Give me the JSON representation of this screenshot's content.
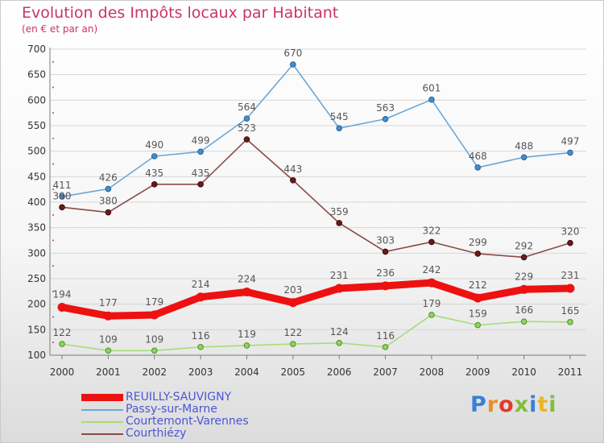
{
  "title": "Evolution des Impôts locaux par Habitant",
  "subtitle": "(en € et par an)",
  "logo": {
    "text": "Proxiti",
    "letters": [
      {
        "ch": "P",
        "color": "#3a7fd6"
      },
      {
        "ch": "r",
        "color": "#e8902a"
      },
      {
        "ch": "o",
        "color": "#e2392b"
      },
      {
        "ch": "x",
        "color": "#7fbf3a"
      },
      {
        "ch": "i",
        "color": "#3a7fd6"
      },
      {
        "ch": "t",
        "color": "#e8b52a"
      },
      {
        "ch": "i",
        "color": "#7fbf3a"
      }
    ]
  },
  "colors": {
    "axis": "#7a7a7a",
    "grid": "#d6d6d6",
    "tick_text": "#333333",
    "value_text": "#555555",
    "axis_dots": "#cc3366"
  },
  "chart_data": {
    "type": "line",
    "categories": [
      "2000",
      "2001",
      "2002",
      "2003",
      "2004",
      "2005",
      "2006",
      "2007",
      "2008",
      "2009",
      "2010",
      "2011"
    ],
    "ylim": [
      100,
      700
    ],
    "yticks": [
      100,
      150,
      200,
      250,
      300,
      350,
      400,
      450,
      500,
      550,
      600,
      650,
      700
    ],
    "grid": true,
    "legend_position": "bottom-left",
    "series": [
      {
        "name": "REUILLY-SAUVIGNY",
        "values": [
          194,
          177,
          179,
          214,
          224,
          203,
          231,
          236,
          242,
          212,
          229,
          231
        ],
        "labels": [
          "194",
          "177",
          "179",
          "214",
          "224",
          "203",
          "231",
          "236",
          "242",
          "212",
          "229",
          "231"
        ],
        "color": "#ee1111",
        "marker_fill": "#ee1111",
        "marker_stroke": "#ee1111",
        "bold": true
      },
      {
        "name": "Passy-sur-Marne",
        "values": [
          411,
          426,
          490,
          499,
          564,
          670,
          545,
          563,
          601,
          468,
          488,
          497
        ],
        "labels": [
          "411",
          "426",
          "490",
          "499",
          "564",
          "670",
          "545",
          "563",
          "601",
          "468",
          "488",
          "497"
        ],
        "color": "#6aa7d8",
        "marker_fill": "#3f8fd0",
        "marker_stroke": "#2a5f95",
        "bold": false
      },
      {
        "name": "Courtemont-Varennes",
        "values": [
          122,
          109,
          109,
          116,
          119,
          122,
          124,
          116,
          179,
          159,
          166,
          165
        ],
        "labels": [
          "122",
          "109",
          "109",
          "116",
          "119",
          "122",
          "124",
          "116",
          "179",
          "159",
          "166",
          "165"
        ],
        "color": "#a8dc7a",
        "marker_fill": "#8fd45a",
        "marker_stroke": "#4f8f2a",
        "bold": false
      },
      {
        "name": "Courthiézy",
        "values": [
          390,
          380,
          435,
          435,
          523,
          443,
          359,
          303,
          322,
          299,
          292,
          320
        ],
        "labels": [
          "390",
          "380",
          "435",
          "435",
          "523",
          "443",
          "359",
          "303",
          "322",
          "299",
          "292",
          "320"
        ],
        "color": "#8a4a4a",
        "marker_fill": "#6b1a1a",
        "marker_stroke": "#3a0a0a",
        "bold": false
      }
    ]
  }
}
